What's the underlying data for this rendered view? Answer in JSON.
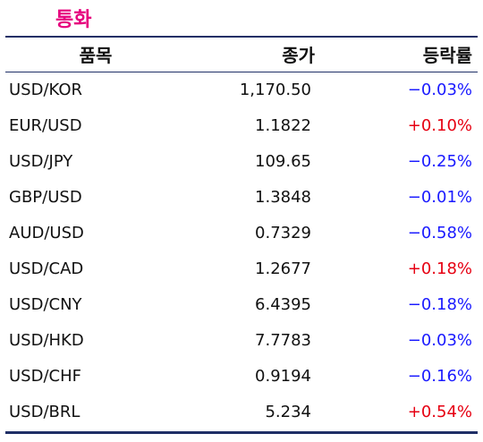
{
  "title": "통화",
  "colors": {
    "title": "#e6007e",
    "rule": "#1f2f66",
    "up": "#e60012",
    "down": "#1a1aff",
    "text": "#111111"
  },
  "header": {
    "item": "품목",
    "close": "종가",
    "change": "등락률"
  },
  "rows": [
    {
      "item": "USD/KOR",
      "close": "1,170.50",
      "change": "−0.03%",
      "direction": "down"
    },
    {
      "item": "EUR/USD",
      "close": "1.1822",
      "change": "+0.10%",
      "direction": "up"
    },
    {
      "item": "USD/JPY",
      "close": "109.65",
      "change": "−0.25%",
      "direction": "down"
    },
    {
      "item": "GBP/USD",
      "close": "1.3848",
      "change": "−0.01%",
      "direction": "down"
    },
    {
      "item": "AUD/USD",
      "close": "0.7329",
      "change": "−0.58%",
      "direction": "down"
    },
    {
      "item": "USD/CAD",
      "close": "1.2677",
      "change": "+0.18%",
      "direction": "up"
    },
    {
      "item": "USD/CNY",
      "close": "6.4395",
      "change": "−0.18%",
      "direction": "down"
    },
    {
      "item": "USD/HKD",
      "close": "7.7783",
      "change": "−0.03%",
      "direction": "down"
    },
    {
      "item": "USD/CHF",
      "close": "0.9194",
      "change": "−0.16%",
      "direction": "down"
    },
    {
      "item": "USD/BRL",
      "close": "5.234",
      "change": "+0.54%",
      "direction": "up"
    }
  ]
}
